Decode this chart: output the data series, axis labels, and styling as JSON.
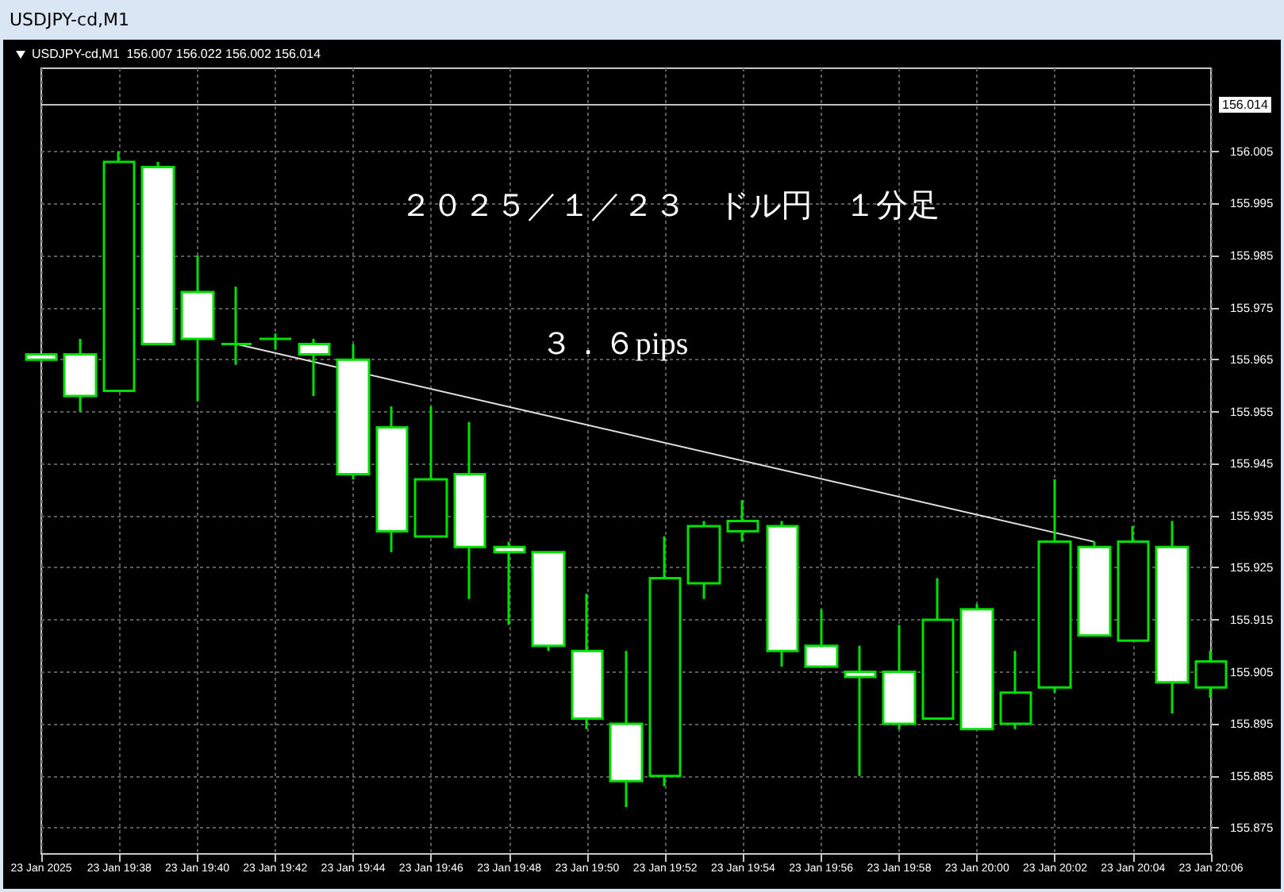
{
  "chart_data": {
    "type": "candlestick",
    "title": "USDJPY-cd,M1",
    "subtitle": "USDJPY-cd,M1  156.007 156.022 156.002 156.014",
    "annotations": [
      "２０２５／１／２３　ドル円　１分足",
      "３．６pips"
    ],
    "x": [
      "2025-01-23T19:36",
      "2025-01-23T19:37",
      "2025-01-23T19:38",
      "2025-01-23T19:39",
      "2025-01-23T19:40",
      "2025-01-23T19:41",
      "2025-01-23T19:42",
      "2025-01-23T19:43",
      "2025-01-23T19:44",
      "2025-01-23T19:45",
      "2025-01-23T19:46",
      "2025-01-23T19:47",
      "2025-01-23T19:48",
      "2025-01-23T19:49",
      "2025-01-23T19:50",
      "2025-01-23T19:51",
      "2025-01-23T19:52",
      "2025-01-23T19:53",
      "2025-01-23T19:54",
      "2025-01-23T19:55",
      "2025-01-23T19:56",
      "2025-01-23T19:57",
      "2025-01-23T19:58",
      "2025-01-23T19:59",
      "2025-01-23T20:00",
      "2025-01-23T20:01",
      "2025-01-23T20:02",
      "2025-01-23T20:03",
      "2025-01-23T20:04",
      "2025-01-23T20:05",
      "2025-01-23T20:06"
    ],
    "ohlc": [
      [
        155.966,
        155.966,
        155.965,
        155.965
      ],
      [
        155.966,
        155.969,
        155.955,
        155.958
      ],
      [
        155.959,
        156.005,
        155.959,
        156.003
      ],
      [
        156.002,
        156.003,
        155.968,
        155.968
      ],
      [
        155.978,
        155.985,
        155.957,
        155.969
      ],
      [
        155.968,
        155.979,
        155.964,
        155.968
      ],
      [
        155.969,
        155.97,
        155.967,
        155.969
      ],
      [
        155.968,
        155.969,
        155.958,
        155.966
      ],
      [
        155.965,
        155.968,
        155.942,
        155.943
      ],
      [
        155.952,
        155.956,
        155.928,
        155.932
      ],
      [
        155.931,
        155.956,
        155.931,
        155.942
      ],
      [
        155.943,
        155.953,
        155.919,
        155.929
      ],
      [
        155.929,
        155.93,
        155.914,
        155.928
      ],
      [
        155.928,
        155.928,
        155.909,
        155.91
      ],
      [
        155.909,
        155.92,
        155.894,
        155.896
      ],
      [
        155.895,
        155.909,
        155.879,
        155.884
      ],
      [
        155.885,
        155.931,
        155.883,
        155.923
      ],
      [
        155.922,
        155.934,
        155.919,
        155.933
      ],
      [
        155.932,
        155.938,
        155.93,
        155.934
      ],
      [
        155.933,
        155.934,
        155.906,
        155.909
      ],
      [
        155.91,
        155.917,
        155.906,
        155.906
      ],
      [
        155.905,
        155.91,
        155.885,
        155.904
      ],
      [
        155.905,
        155.914,
        155.894,
        155.895
      ],
      [
        155.896,
        155.923,
        155.896,
        155.915
      ],
      [
        155.917,
        155.918,
        155.894,
        155.894
      ],
      [
        155.895,
        155.909,
        155.894,
        155.901
      ],
      [
        155.902,
        155.942,
        155.901,
        155.93
      ],
      [
        155.929,
        155.93,
        155.912,
        155.912
      ],
      [
        155.911,
        155.933,
        155.911,
        155.93
      ],
      [
        155.929,
        155.934,
        155.897,
        155.903
      ],
      [
        155.902,
        155.909,
        155.9,
        155.907
      ]
    ],
    "color": "#00e000",
    "series": [
      {
        "type": "line",
        "x": [
          "2025-01-23T19:41",
          "2025-01-23T20:03"
        ],
        "values": [
          155.968,
          155.93
        ],
        "color": "#e0e0e0"
      }
    ],
    "marker": "none",
    "ylim": [
      155.87,
      156.021
    ],
    "yticks": [
      155.875,
      155.885,
      155.895,
      155.905,
      155.915,
      155.925,
      155.935,
      155.945,
      155.955,
      155.965,
      155.975,
      155.985,
      155.995,
      156.005
    ],
    "xlim": [
      "2025-01-23T19:36",
      "2025-01-23T20:06"
    ],
    "xticks": [
      {
        "value": "2025-01-23T19:36",
        "label": "23 Jan 2025"
      },
      {
        "value": "2025-01-23T19:38",
        "label": "23 Jan 19:38"
      },
      {
        "value": "2025-01-23T19:40",
        "label": "23 Jan 19:40"
      },
      {
        "value": "2025-01-23T19:42",
        "label": "23 Jan 19:42"
      },
      {
        "value": "2025-01-23T19:44",
        "label": "23 Jan 19:44"
      },
      {
        "value": "2025-01-23T19:46",
        "label": "23 Jan 19:46"
      },
      {
        "value": "2025-01-23T19:48",
        "label": "23 Jan 19:48"
      },
      {
        "value": "2025-01-23T19:50",
        "label": "23 Jan 19:50"
      },
      {
        "value": "2025-01-23T19:52",
        "label": "23 Jan 19:52"
      },
      {
        "value": "2025-01-23T19:54",
        "label": "23 Jan 19:54"
      },
      {
        "value": "2025-01-23T19:56",
        "label": "23 Jan 19:56"
      },
      {
        "value": "2025-01-23T19:58",
        "label": "23 Jan 19:58"
      },
      {
        "value": "2025-01-23T20:00",
        "label": "23 Jan 20:00"
      },
      {
        "value": "2025-01-23T20:02",
        "label": "23 Jan 20:02"
      },
      {
        "value": "2025-01-23T20:04",
        "label": "23 Jan 20:04"
      },
      {
        "value": "2025-01-23T20:06",
        "label": "23 Jan 20:06"
      }
    ],
    "ref_lines": [
      {
        "axis": "y",
        "value": 156.014,
        "label": "156.014",
        "color": "#c0c0c0"
      }
    ],
    "grid": true
  }
}
